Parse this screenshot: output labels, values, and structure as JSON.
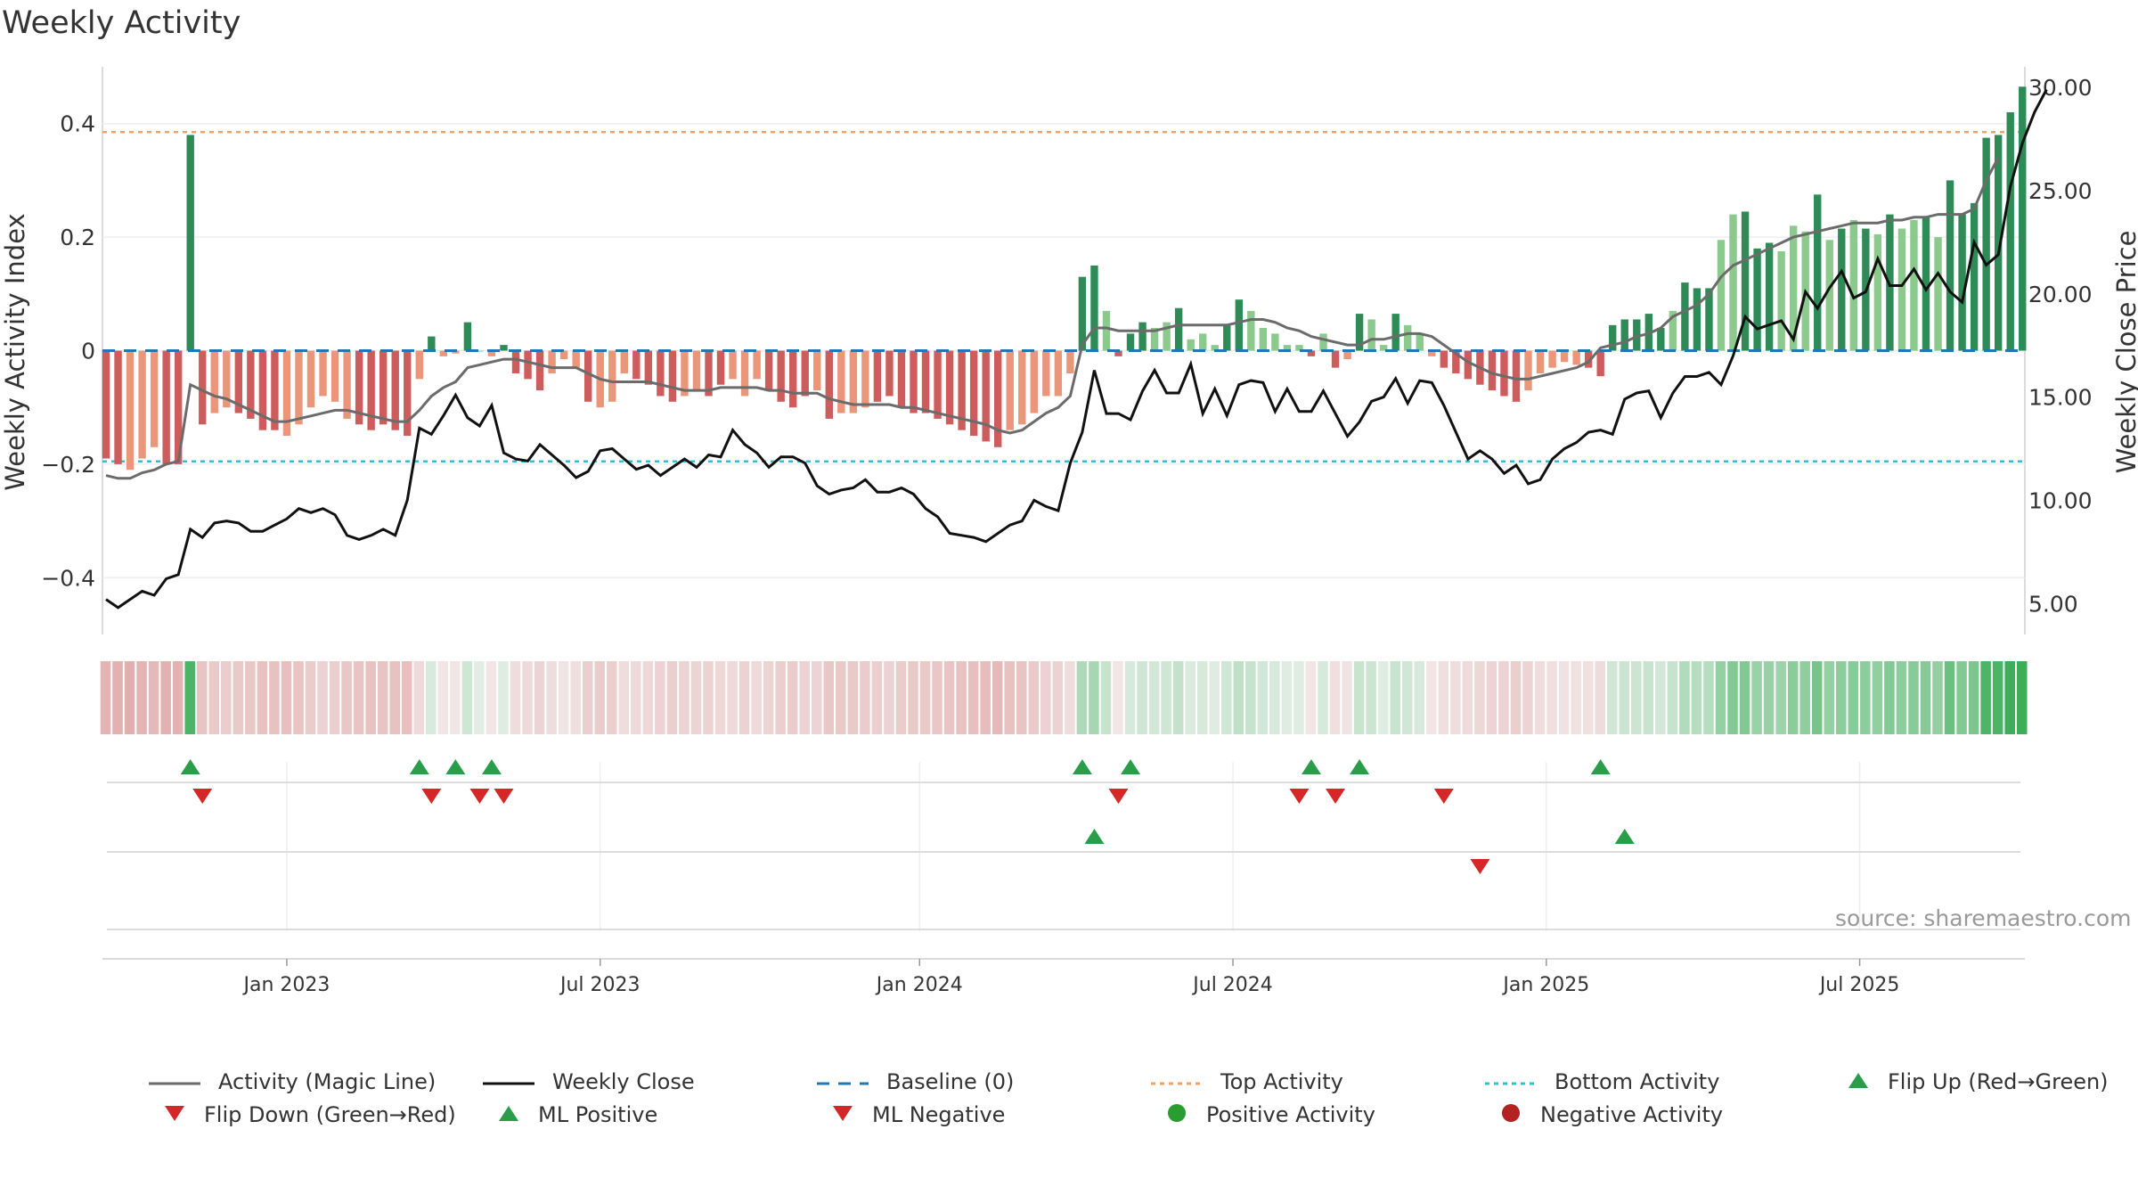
{
  "title": "Weekly Activity",
  "source": "source: sharemaestro.com",
  "colors": {
    "magic_line": "#6b6b6b",
    "close": "#111111",
    "baseline": "#1f77b4",
    "top": "#f0a060",
    "bottom": "#22c5d8",
    "pos_strong": "#2e8b57",
    "pos_weak": "#8cc98c",
    "neg_strong": "#cd5c5c",
    "neg_weak": "#e9967a",
    "flip_up": "#2a9d4b",
    "flip_down": "#d62728"
  },
  "chart_data": {
    "type": "bar+line",
    "title": "Weekly Activity",
    "ylabel_left": "Weekly Activity Index",
    "ylabel_right": "Weekly Close Price",
    "left_ylim": [
      -0.5,
      0.5
    ],
    "right_ylim": [
      3.5,
      31.0
    ],
    "left_ticks": [
      {
        "v": 0.4,
        "label": "0.4"
      },
      {
        "v": 0.2,
        "label": "0.2"
      },
      {
        "v": 0,
        "label": "0"
      },
      {
        "v": -0.2,
        "label": "−0.2"
      },
      {
        "v": -0.4,
        "label": "−0.4"
      }
    ],
    "right_ticks": [
      {
        "v": 30,
        "label": "30.00"
      },
      {
        "v": 25,
        "label": "25.00"
      },
      {
        "v": 20,
        "label": "20.00"
      },
      {
        "v": 15,
        "label": "15.00"
      },
      {
        "v": 10,
        "label": "10.00"
      },
      {
        "v": 5,
        "label": "5.00"
      }
    ],
    "x_ticks": [
      {
        "w": 15,
        "label": "Jan 2023"
      },
      {
        "w": 41,
        "label": "Jul 2023"
      },
      {
        "w": 67.5,
        "label": "Jan 2024"
      },
      {
        "w": 93.5,
        "label": "Jul 2024"
      },
      {
        "w": 119.5,
        "label": "Jan 2025"
      },
      {
        "w": 145.5,
        "label": "Jul 2025"
      }
    ],
    "top_activity": 0.385,
    "bottom_activity": -0.195,
    "activity": [
      -0.19,
      -0.2,
      -0.21,
      -0.19,
      -0.17,
      -0.2,
      -0.2,
      0.38,
      -0.13,
      -0.11,
      -0.1,
      -0.11,
      -0.12,
      -0.14,
      -0.14,
      -0.15,
      -0.13,
      -0.1,
      -0.08,
      -0.09,
      -0.12,
      -0.13,
      -0.14,
      -0.13,
      -0.14,
      -0.15,
      -0.05,
      0.025,
      -0.01,
      -0.005,
      0.05,
      0.0,
      -0.01,
      0.01,
      -0.04,
      -0.05,
      -0.07,
      -0.04,
      -0.015,
      -0.03,
      -0.09,
      -0.1,
      -0.09,
      -0.04,
      -0.05,
      -0.06,
      -0.08,
      -0.09,
      -0.08,
      -0.07,
      -0.08,
      -0.06,
      -0.05,
      -0.08,
      -0.05,
      -0.07,
      -0.09,
      -0.1,
      -0.08,
      -0.07,
      -0.12,
      -0.11,
      -0.11,
      -0.1,
      -0.09,
      -0.08,
      -0.1,
      -0.11,
      -0.11,
      -0.12,
      -0.13,
      -0.14,
      -0.15,
      -0.16,
      -0.17,
      -0.14,
      -0.13,
      -0.11,
      -0.08,
      -0.08,
      -0.04,
      0.13,
      0.15,
      0.07,
      -0.01,
      0.03,
      0.05,
      0.04,
      0.05,
      0.075,
      0.02,
      0.03,
      0.01,
      0.045,
      0.09,
      0.07,
      0.04,
      0.03,
      0.01,
      0.01,
      -0.01,
      0.03,
      -0.03,
      -0.015,
      0.065,
      0.055,
      0.01,
      0.065,
      0.045,
      0.03,
      -0.01,
      -0.03,
      -0.04,
      -0.05,
      -0.06,
      -0.07,
      -0.08,
      -0.09,
      -0.07,
      -0.04,
      -0.03,
      -0.02,
      -0.025,
      -0.03,
      -0.045,
      0.045,
      0.055,
      0.055,
      0.065,
      0.04,
      0.07,
      0.12,
      0.11,
      0.11,
      0.195,
      0.24,
      0.245,
      0.18,
      0.19,
      0.175,
      0.22,
      0.21,
      0.275,
      0.195,
      0.215,
      0.23,
      0.215,
      0.205,
      0.24,
      0.215,
      0.23,
      0.235,
      0.2,
      0.3,
      0.24,
      0.26,
      0.375,
      0.38,
      0.42,
      0.465
    ],
    "activity_strength": [
      "s",
      "s",
      "w",
      "w",
      "w",
      "s",
      "s",
      "s",
      "s",
      "w",
      "w",
      "s",
      "s",
      "s",
      "s",
      "w",
      "w",
      "w",
      "w",
      "w",
      "w",
      "s",
      "s",
      "s",
      "s",
      "s",
      "w",
      "s",
      "w",
      "w",
      "s",
      "w",
      "w",
      "s",
      "s",
      "s",
      "s",
      "w",
      "w",
      "w",
      "s",
      "w",
      "w",
      "w",
      "s",
      "s",
      "s",
      "s",
      "w",
      "w",
      "s",
      "s",
      "w",
      "w",
      "w",
      "s",
      "s",
      "s",
      "s",
      "w",
      "s",
      "w",
      "w",
      "w",
      "s",
      "s",
      "s",
      "s",
      "s",
      "s",
      "s",
      "s",
      "s",
      "s",
      "s",
      "w",
      "w",
      "w",
      "w",
      "w",
      "w",
      "s",
      "s",
      "w",
      "s",
      "s",
      "s",
      "w",
      "w",
      "s",
      "w",
      "w",
      "w",
      "s",
      "s",
      "w",
      "w",
      "w",
      "w",
      "w",
      "s",
      "w",
      "s",
      "w",
      "s",
      "w",
      "w",
      "s",
      "w",
      "w",
      "w",
      "s",
      "s",
      "s",
      "s",
      "s",
      "s",
      "s",
      "w",
      "w",
      "w",
      "w",
      "w",
      "s",
      "s",
      "s",
      "s",
      "s",
      "s",
      "s",
      "w",
      "s",
      "s",
      "s",
      "w",
      "w",
      "s",
      "s",
      "s",
      "w",
      "w",
      "w",
      "s",
      "w",
      "s",
      "w",
      "s",
      "w",
      "s",
      "w",
      "w",
      "s",
      "w",
      "s",
      "s",
      "s",
      "s",
      "s",
      "s",
      "s"
    ],
    "magic_line": [
      -0.22,
      -0.225,
      -0.225,
      -0.215,
      -0.21,
      -0.2,
      -0.195,
      -0.06,
      -0.07,
      -0.08,
      -0.085,
      -0.095,
      -0.105,
      -0.115,
      -0.125,
      -0.125,
      -0.12,
      -0.115,
      -0.11,
      -0.105,
      -0.105,
      -0.11,
      -0.115,
      -0.12,
      -0.125,
      -0.125,
      -0.105,
      -0.08,
      -0.065,
      -0.055,
      -0.03,
      -0.025,
      -0.02,
      -0.015,
      -0.015,
      -0.02,
      -0.025,
      -0.03,
      -0.03,
      -0.03,
      -0.04,
      -0.05,
      -0.055,
      -0.055,
      -0.055,
      -0.055,
      -0.06,
      -0.065,
      -0.07,
      -0.07,
      -0.07,
      -0.065,
      -0.065,
      -0.065,
      -0.065,
      -0.07,
      -0.07,
      -0.075,
      -0.075,
      -0.075,
      -0.085,
      -0.09,
      -0.095,
      -0.095,
      -0.095,
      -0.095,
      -0.1,
      -0.1,
      -0.105,
      -0.11,
      -0.115,
      -0.12,
      -0.125,
      -0.13,
      -0.14,
      -0.145,
      -0.14,
      -0.125,
      -0.11,
      -0.1,
      -0.08,
      0.01,
      0.04,
      0.04,
      0.035,
      0.035,
      0.035,
      0.035,
      0.04,
      0.045,
      0.045,
      0.045,
      0.045,
      0.045,
      0.05,
      0.055,
      0.055,
      0.05,
      0.04,
      0.035,
      0.025,
      0.02,
      0.015,
      0.01,
      0.01,
      0.02,
      0.02,
      0.025,
      0.03,
      0.03,
      0.025,
      0.01,
      -0.005,
      -0.02,
      -0.03,
      -0.04,
      -0.045,
      -0.05,
      -0.05,
      -0.045,
      -0.04,
      -0.035,
      -0.03,
      -0.02,
      0.005,
      0.01,
      0.015,
      0.025,
      0.03,
      0.04,
      0.06,
      0.07,
      0.08,
      0.1,
      0.13,
      0.15,
      0.16,
      0.17,
      0.18,
      0.19,
      0.2,
      0.205,
      0.21,
      0.215,
      0.22,
      0.225,
      0.225,
      0.225,
      0.23,
      0.23,
      0.235,
      0.235,
      0.24,
      0.24,
      0.24,
      0.25,
      0.3,
      0.34
    ],
    "close": [
      5.2,
      4.8,
      5.2,
      5.6,
      5.4,
      6.2,
      6.4,
      8.6,
      8.2,
      8.9,
      9.0,
      8.9,
      8.5,
      8.5,
      8.8,
      9.1,
      9.6,
      9.4,
      9.6,
      9.3,
      8.3,
      8.1,
      8.3,
      8.6,
      8.3,
      10.0,
      13.5,
      13.2,
      14.1,
      15.1,
      14.0,
      13.6,
      14.6,
      12.3,
      12.0,
      11.9,
      12.7,
      12.2,
      11.7,
      11.1,
      11.4,
      12.4,
      12.5,
      12.0,
      11.5,
      11.7,
      11.2,
      11.6,
      12.0,
      11.6,
      12.2,
      12.1,
      13.4,
      12.7,
      12.3,
      11.6,
      12.1,
      12.1,
      11.8,
      10.7,
      10.3,
      10.5,
      10.6,
      11.0,
      10.4,
      10.4,
      10.6,
      10.3,
      9.6,
      9.2,
      8.4,
      8.3,
      8.2,
      8.0,
      8.4,
      8.8,
      9.0,
      10.0,
      9.7,
      9.5,
      11.8,
      13.3,
      16.3,
      14.2,
      14.2,
      13.9,
      15.3,
      16.3,
      15.2,
      15.2,
      16.6,
      14.2,
      15.4,
      14.1,
      15.6,
      15.8,
      15.7,
      14.3,
      15.4,
      14.3,
      14.3,
      15.3,
      14.2,
      13.1,
      13.8,
      14.8,
      15.0,
      15.9,
      14.7,
      15.8,
      15.7,
      14.6,
      13.3,
      12.0,
      12.4,
      12.0,
      11.3,
      11.7,
      10.8,
      11.0,
      12.0,
      12.5,
      12.8,
      13.3,
      13.4,
      13.2,
      14.9,
      15.2,
      15.3,
      14.0,
      15.2,
      16.0,
      16.0,
      16.2,
      15.6,
      17.0,
      18.9,
      18.3,
      18.5,
      18.7,
      17.8,
      20.1,
      19.3,
      20.3,
      21.1,
      19.8,
      20.1,
      21.7,
      20.4,
      20.4,
      21.2,
      20.2,
      21.0,
      20.1,
      19.6,
      22.5,
      21.4,
      21.9,
      25.2,
      27.3,
      28.8,
      29.9
    ],
    "flip_up_row1": [
      7,
      26,
      29,
      32,
      81,
      85,
      100,
      104,
      124
    ],
    "flip_down_row1": [
      8,
      27,
      31,
      33,
      84,
      99,
      102,
      111
    ],
    "ml_positive": [
      82,
      126
    ],
    "ml_negative": [
      114
    ],
    "legend": [
      {
        "label": "Activity (Magic Line)",
        "symbol": "line-gray"
      },
      {
        "label": "Weekly Close",
        "symbol": "line-black"
      },
      {
        "label": "Baseline (0)",
        "symbol": "dash-blue"
      },
      {
        "label": "Top Activity",
        "symbol": "dot-orange"
      },
      {
        "label": "Bottom Activity",
        "symbol": "dot-cyan"
      },
      {
        "label": "Flip Up (Red→Green)",
        "symbol": "tri-up-green"
      },
      {
        "label": "Flip Down (Green→Red)",
        "symbol": "tri-down-red"
      },
      {
        "label": "ML Positive",
        "symbol": "tri-up-green"
      },
      {
        "label": "ML Negative",
        "symbol": "tri-down-red"
      },
      {
        "label": "Positive Activity",
        "symbol": "circle-green"
      },
      {
        "label": "Negative Activity",
        "symbol": "circle-red"
      }
    ]
  }
}
